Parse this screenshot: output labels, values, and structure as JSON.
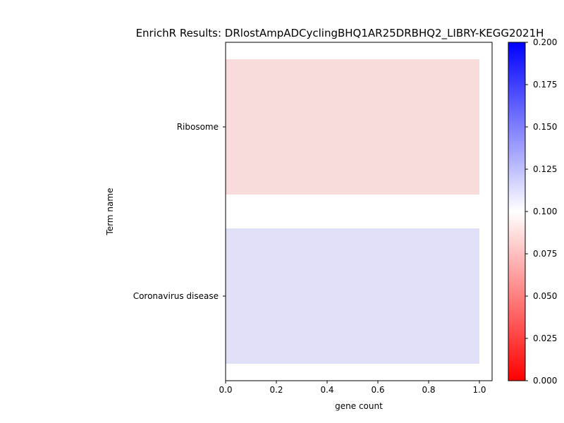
{
  "chart_data": {
    "type": "bar",
    "orientation": "horizontal",
    "title": "EnrichR Results: DRlostAmpADCyclingBHQ1AR25DRBHQ2_LIBRY-KEGG2021H",
    "xlabel": "gene count",
    "ylabel": "Term name",
    "categories": [
      "Ribosome",
      "Coronavirus disease"
    ],
    "values": [
      1,
      1
    ],
    "color_values": [
      0.09,
      0.11
    ],
    "xlim": [
      0,
      1.05
    ],
    "xticks": [
      "0.0",
      "0.2",
      "0.4",
      "0.6",
      "0.8",
      "1.0"
    ],
    "colorbar": {
      "colormap": "bwr_r",
      "range": [
        0.0,
        0.2
      ],
      "ticks": [
        "0.000",
        "0.025",
        "0.050",
        "0.075",
        "0.100",
        "0.125",
        "0.150",
        "0.175",
        "0.200"
      ],
      "colors": {
        "low": "#ff0000",
        "mid": "#ffffff",
        "high": "#0000ff"
      }
    },
    "bar_colors": [
      "#f8dbdb",
      "#e0e0f8"
    ],
    "grid": false,
    "legend": "none"
  }
}
